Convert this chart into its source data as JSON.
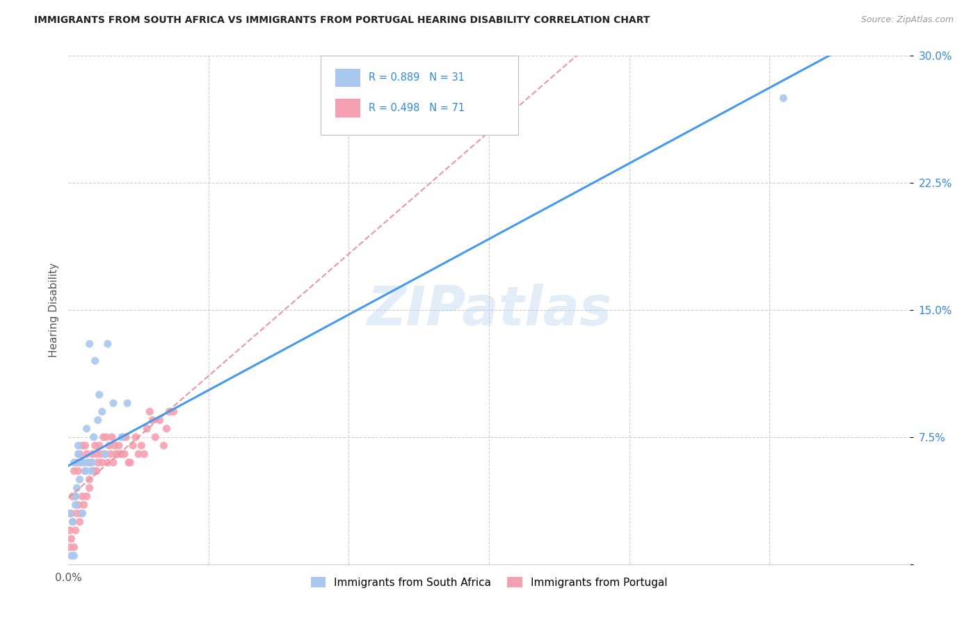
{
  "title": "IMMIGRANTS FROM SOUTH AFRICA VS IMMIGRANTS FROM PORTUGAL HEARING DISABILITY CORRELATION CHART",
  "source": "Source: ZipAtlas.com",
  "ylabel": "Hearing Disability",
  "xlim": [
    0.0,
    0.6
  ],
  "ylim": [
    0.0,
    0.3
  ],
  "xtick_positions": [
    0.0,
    0.1,
    0.2,
    0.3,
    0.4,
    0.5,
    0.6
  ],
  "ytick_positions": [
    0.0,
    0.075,
    0.15,
    0.225,
    0.3
  ],
  "xtick_labels_show": {
    "0.0": "0.0%"
  },
  "ytick_labels": [
    "",
    "7.5%",
    "15.0%",
    "22.5%",
    "30.0%"
  ],
  "background_color": "#ffffff",
  "grid_color": "#cccccc",
  "blue_color": "#a8c8f0",
  "pink_color": "#f5a0b0",
  "blue_line_color": "#4499ee",
  "pink_line_color": "#e8909a",
  "r_blue": 0.889,
  "n_blue": 31,
  "r_pink": 0.498,
  "n_pink": 71,
  "legend_color": "#3388dd",
  "watermark": "ZIPatlas",
  "sa_x": [
    0.001,
    0.002,
    0.003,
    0.004,
    0.004,
    0.005,
    0.005,
    0.006,
    0.007,
    0.007,
    0.008,
    0.009,
    0.01,
    0.011,
    0.012,
    0.013,
    0.014,
    0.015,
    0.016,
    0.017,
    0.018,
    0.019,
    0.021,
    0.022,
    0.024,
    0.026,
    0.028,
    0.032,
    0.038,
    0.042,
    0.51
  ],
  "sa_y": [
    0.03,
    0.005,
    0.025,
    0.06,
    0.005,
    0.035,
    0.04,
    0.045,
    0.065,
    0.07,
    0.05,
    0.06,
    0.03,
    0.06,
    0.055,
    0.08,
    0.06,
    0.13,
    0.055,
    0.06,
    0.075,
    0.12,
    0.085,
    0.1,
    0.09,
    0.065,
    0.13,
    0.095,
    0.075,
    0.095,
    0.275
  ],
  "pt_x": [
    0.001,
    0.001,
    0.002,
    0.002,
    0.003,
    0.003,
    0.004,
    0.004,
    0.005,
    0.005,
    0.006,
    0.006,
    0.007,
    0.007,
    0.008,
    0.008,
    0.009,
    0.009,
    0.01,
    0.01,
    0.011,
    0.012,
    0.012,
    0.013,
    0.013,
    0.014,
    0.015,
    0.015,
    0.016,
    0.017,
    0.018,
    0.019,
    0.02,
    0.02,
    0.021,
    0.022,
    0.023,
    0.024,
    0.025,
    0.026,
    0.027,
    0.028,
    0.029,
    0.03,
    0.031,
    0.032,
    0.033,
    0.034,
    0.035,
    0.036,
    0.037,
    0.038,
    0.039,
    0.04,
    0.041,
    0.043,
    0.044,
    0.046,
    0.048,
    0.05,
    0.052,
    0.054,
    0.056,
    0.058,
    0.06,
    0.062,
    0.065,
    0.068,
    0.07,
    0.072,
    0.075
  ],
  "pt_y": [
    0.01,
    0.02,
    0.015,
    0.03,
    0.025,
    0.04,
    0.01,
    0.055,
    0.02,
    0.04,
    0.03,
    0.06,
    0.035,
    0.055,
    0.025,
    0.065,
    0.03,
    0.06,
    0.04,
    0.07,
    0.035,
    0.055,
    0.07,
    0.04,
    0.065,
    0.06,
    0.05,
    0.045,
    0.06,
    0.065,
    0.055,
    0.07,
    0.055,
    0.065,
    0.06,
    0.07,
    0.065,
    0.06,
    0.075,
    0.065,
    0.075,
    0.06,
    0.07,
    0.065,
    0.075,
    0.06,
    0.07,
    0.065,
    0.065,
    0.07,
    0.065,
    0.065,
    0.075,
    0.065,
    0.075,
    0.06,
    0.06,
    0.07,
    0.075,
    0.065,
    0.07,
    0.065,
    0.08,
    0.09,
    0.085,
    0.075,
    0.085,
    0.07,
    0.08,
    0.09,
    0.09
  ],
  "legend_entries": [
    {
      "label": "Immigrants from South Africa",
      "color": "#a8c8f0"
    },
    {
      "label": "Immigrants from Portugal",
      "color": "#f5a0b0"
    }
  ]
}
